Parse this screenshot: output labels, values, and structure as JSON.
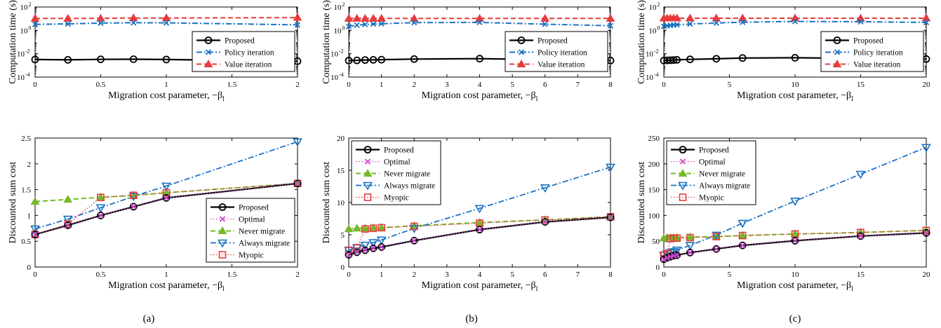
{
  "ylabel_top": "Computation time (s)",
  "ylabel_bottom": "Discounted sum cost",
  "xlabel": "Migration cost parameter, −β",
  "xlabel_subscript": "l",
  "subfigure_labels": [
    "(a)",
    "(b)",
    "(c)"
  ],
  "colors": {
    "Proposed": "#000000",
    "Optimal": "#cc44cc",
    "Never migrate": "#77b82a",
    "Always migrate": "#1a72c4",
    "Myopic": "#e83a3a",
    "Policy iteration": "#1a72c4",
    "Value iteration": "#e83a3a"
  },
  "chart_data": [
    {
      "type": "line",
      "scale": "log",
      "xlim": [
        0,
        2
      ],
      "ylim": [
        0.0001,
        100
      ],
      "xticks": [
        "0",
        "0.5",
        "1",
        "1.5",
        "2"
      ],
      "xtick_vals": [
        0,
        0.5,
        1,
        1.5,
        2
      ],
      "yticks": [
        "10^-4",
        "10^-2",
        "10^0",
        "10^2"
      ],
      "ytick_vals": [
        0.0001,
        0.01,
        1,
        100
      ],
      "legend": "center-right",
      "series": [
        {
          "name": "Proposed",
          "x": [
            0,
            0.25,
            0.5,
            0.75,
            1,
            2
          ],
          "y": [
            0.0032,
            0.003,
            0.0033,
            0.0034,
            0.0032,
            0.0023
          ]
        },
        {
          "name": "Policy iteration",
          "x": [
            0,
            0.25,
            0.5,
            0.75,
            1,
            2
          ],
          "y": [
            3.3,
            3.6,
            4.2,
            4.5,
            4.4,
            3.0
          ]
        },
        {
          "name": "Value iteration",
          "x": [
            0,
            0.25,
            0.5,
            0.75,
            1,
            2
          ],
          "y": [
            10.5,
            10.5,
            10.8,
            11.5,
            11.5,
            12.5
          ]
        }
      ]
    },
    {
      "type": "line",
      "scale": "log",
      "xlim": [
        0,
        8
      ],
      "ylim": [
        0.0001,
        100
      ],
      "xticks": [
        "0",
        "1",
        "2",
        "3",
        "4",
        "5",
        "6",
        "7",
        "8"
      ],
      "xtick_vals": [
        0,
        1,
        2,
        3,
        4,
        5,
        6,
        7,
        8
      ],
      "yticks": [
        "10^-4",
        "10^-2",
        "10^0",
        "10^2"
      ],
      "ytick_vals": [
        0.0001,
        0.01,
        1,
        100
      ],
      "legend": "center-right",
      "series": [
        {
          "name": "Proposed",
          "x": [
            0,
            0.25,
            0.5,
            0.75,
            1,
            2,
            4,
            6,
            8
          ],
          "y": [
            0.0026,
            0.0027,
            0.0029,
            0.003,
            0.0031,
            0.0035,
            0.0038,
            0.0031,
            0.0026
          ]
        },
        {
          "name": "Policy iteration",
          "x": [
            0,
            0.25,
            0.5,
            0.75,
            1,
            2,
            4,
            6,
            8
          ],
          "y": [
            2.2,
            2.8,
            3.2,
            3.5,
            3.7,
            4.6,
            4.8,
            3.4,
            2.5
          ]
        },
        {
          "name": "Value iteration",
          "x": [
            0,
            0.25,
            0.5,
            0.75,
            1,
            2,
            4,
            6,
            8
          ],
          "y": [
            10.5,
            10.5,
            10.5,
            10.5,
            10.5,
            10.5,
            10.5,
            10.5,
            10.5
          ]
        }
      ]
    },
    {
      "type": "line",
      "scale": "log",
      "xlim": [
        0,
        20
      ],
      "ylim": [
        0.0001,
        100
      ],
      "xticks": [
        "0",
        "5",
        "10",
        "15",
        "20"
      ],
      "xtick_vals": [
        0,
        5,
        10,
        15,
        20
      ],
      "yticks": [
        "10^-4",
        "10^-2",
        "10^0",
        "10^2"
      ],
      "ytick_vals": [
        0.0001,
        0.01,
        1,
        100
      ],
      "legend": "center-right",
      "series": [
        {
          "name": "Proposed",
          "x": [
            0,
            0.25,
            0.5,
            0.75,
            1,
            2,
            4,
            6,
            10,
            15,
            20
          ],
          "y": [
            0.0026,
            0.0027,
            0.0028,
            0.0029,
            0.003,
            0.0033,
            0.0037,
            0.0043,
            0.0045,
            0.004,
            0.0035
          ]
        },
        {
          "name": "Policy iteration",
          "x": [
            0,
            0.25,
            0.5,
            0.75,
            1,
            2,
            4,
            6,
            10,
            15,
            20
          ],
          "y": [
            2.2,
            2.5,
            2.7,
            2.9,
            3.0,
            3.5,
            4.3,
            5.0,
            5.8,
            5.5,
            4.8
          ]
        },
        {
          "name": "Value iteration",
          "x": [
            0,
            0.25,
            0.5,
            0.75,
            1,
            2,
            4,
            6,
            10,
            15,
            20
          ],
          "y": [
            11,
            11,
            11,
            11,
            11,
            11,
            11,
            11,
            11,
            11,
            11
          ]
        }
      ]
    },
    {
      "type": "line",
      "xlim": [
        0,
        2
      ],
      "ylim": [
        0,
        2.5
      ],
      "xticks": [
        "0",
        "0.5",
        "1",
        "1.5",
        "2"
      ],
      "xtick_vals": [
        0,
        0.5,
        1,
        1.5,
        2
      ],
      "yticks": [
        "0",
        "0.5",
        "1",
        "1.5",
        "2",
        "2.5"
      ],
      "ytick_vals": [
        0,
        0.5,
        1,
        1.5,
        2,
        2.5
      ],
      "legend": "bottom-right",
      "series": [
        {
          "name": "Proposed",
          "x": [
            0,
            0.25,
            0.5,
            0.75,
            1,
            2
          ],
          "y": [
            0.63,
            0.81,
            1.0,
            1.17,
            1.34,
            1.62
          ]
        },
        {
          "name": "Optimal",
          "x": [
            0,
            0.25,
            0.5,
            0.75,
            1,
            2
          ],
          "y": [
            0.63,
            0.81,
            1.0,
            1.17,
            1.34,
            1.62
          ]
        },
        {
          "name": "Never migrate",
          "x": [
            0,
            0.25,
            0.5,
            0.75,
            1,
            2
          ],
          "y": [
            1.27,
            1.31,
            1.35,
            1.39,
            1.44,
            1.62
          ]
        },
        {
          "name": "Always migrate",
          "x": [
            0,
            0.25,
            0.5,
            0.75,
            1,
            2
          ],
          "y": [
            0.74,
            0.93,
            1.15,
            1.37,
            1.57,
            2.43
          ]
        },
        {
          "name": "Myopic",
          "x": [
            0,
            0.25,
            0.5,
            0.75,
            1,
            2
          ],
          "y": [
            0.63,
            0.83,
            1.35,
            1.39,
            1.44,
            1.62
          ]
        }
      ]
    },
    {
      "type": "line",
      "xlim": [
        0,
        8
      ],
      "ylim": [
        0,
        20
      ],
      "xticks": [
        "0",
        "1",
        "2",
        "3",
        "4",
        "5",
        "6",
        "7",
        "8"
      ],
      "xtick_vals": [
        0,
        1,
        2,
        3,
        4,
        5,
        6,
        7,
        8
      ],
      "yticks": [
        "0",
        "5",
        "10",
        "15",
        "20"
      ],
      "ytick_vals": [
        0,
        5,
        10,
        15,
        20
      ],
      "legend": "top-left",
      "series": [
        {
          "name": "Proposed",
          "x": [
            0,
            0.25,
            0.5,
            0.75,
            1,
            2,
            4,
            6,
            8
          ],
          "y": [
            1.9,
            2.3,
            2.6,
            2.9,
            3.1,
            4.1,
            5.8,
            7.0,
            7.7
          ]
        },
        {
          "name": "Optimal",
          "x": [
            0,
            0.25,
            0.5,
            0.75,
            1,
            2,
            4,
            6,
            8
          ],
          "y": [
            1.9,
            2.3,
            2.6,
            2.9,
            3.1,
            4.1,
            5.8,
            7.0,
            7.7
          ]
        },
        {
          "name": "Never migrate",
          "x": [
            0,
            0.25,
            0.5,
            0.75,
            1,
            2,
            4,
            6,
            8
          ],
          "y": [
            5.9,
            6.0,
            6.0,
            6.1,
            6.1,
            6.4,
            6.9,
            7.3,
            7.8
          ]
        },
        {
          "name": "Always migrate",
          "x": [
            0,
            0.25,
            0.5,
            0.75,
            1,
            2,
            4,
            6,
            8
          ],
          "y": [
            2.6,
            3.0,
            3.4,
            3.8,
            4.2,
            6.0,
            9.1,
            12.3,
            15.5
          ]
        },
        {
          "name": "Myopic",
          "x": [
            0,
            0.25,
            0.5,
            0.75,
            1,
            2,
            4,
            6,
            8
          ],
          "y": [
            2.6,
            3.0,
            5.9,
            6.0,
            6.1,
            6.3,
            6.8,
            7.3,
            7.8
          ]
        }
      ]
    },
    {
      "type": "line",
      "xlim": [
        0,
        20
      ],
      "ylim": [
        0,
        250
      ],
      "xticks": [
        "0",
        "5",
        "10",
        "15",
        "20"
      ],
      "xtick_vals": [
        0,
        5,
        10,
        15,
        20
      ],
      "yticks": [
        "0",
        "50",
        "100",
        "150",
        "200",
        "250"
      ],
      "ytick_vals": [
        0,
        50,
        100,
        150,
        200,
        250
      ],
      "legend": "top-left",
      "series": [
        {
          "name": "Proposed",
          "x": [
            0,
            0.25,
            0.5,
            0.75,
            1,
            2,
            4,
            6,
            10,
            15,
            20
          ],
          "y": [
            15,
            18,
            20,
            22,
            23,
            28,
            35,
            42,
            51,
            60,
            66
          ]
        },
        {
          "name": "Optimal",
          "x": [
            0,
            0.25,
            0.5,
            0.75,
            1,
            2,
            4,
            6,
            10,
            15,
            20
          ],
          "y": [
            15,
            18,
            20,
            22,
            23,
            28,
            35,
            42,
            51,
            60,
            66
          ]
        },
        {
          "name": "Never migrate",
          "x": [
            0,
            0.25,
            0.5,
            0.75,
            1,
            2,
            4,
            6,
            10,
            15,
            20
          ],
          "y": [
            56,
            57,
            57,
            57,
            57,
            58,
            59,
            61,
            64,
            67,
            71
          ]
        },
        {
          "name": "Always migrate",
          "x": [
            0,
            0.25,
            0.5,
            0.75,
            1,
            2,
            4,
            6,
            10,
            15,
            20
          ],
          "y": [
            23,
            26,
            28,
            30,
            33,
            42,
            62,
            85,
            128,
            180,
            232
          ]
        },
        {
          "name": "Myopic",
          "x": [
            0,
            0.25,
            0.5,
            0.75,
            1,
            2,
            4,
            6,
            10,
            15,
            20
          ],
          "y": [
            23,
            26,
            55,
            56,
            56,
            57,
            59,
            61,
            64,
            67,
            71
          ]
        }
      ]
    }
  ]
}
